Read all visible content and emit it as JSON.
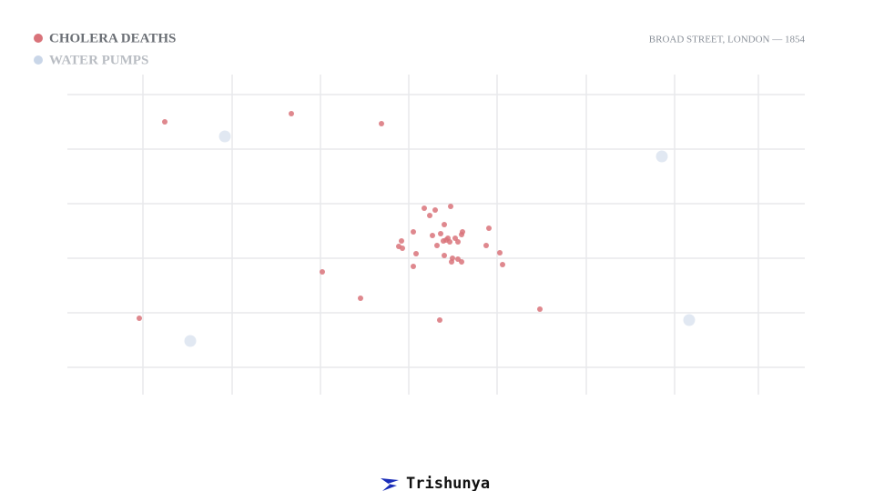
{
  "chart_data": {
    "type": "scatter",
    "subtitle": "BROAD STREET, LONDON — 1854",
    "xlim": [
      0,
      810
    ],
    "ylim": [
      0,
      352
    ],
    "xticks": [
      83,
      181,
      278,
      375,
      472,
      570,
      667,
      759
    ],
    "yticks": [
      30,
      90,
      150,
      210,
      270,
      330
    ],
    "grid": true,
    "legend": "top-left",
    "series": [
      {
        "name": "CHOLERA DEATHS",
        "color": "#d9737a",
        "x": [
          107,
          246,
          345,
          392,
          404,
          421,
          398,
          414,
          380,
          463,
          401,
          410,
          418,
          426,
          434,
          433,
          367,
          364,
          368,
          406,
          413,
          416,
          420,
          429,
          460,
          383,
          414,
          423,
          429,
          475,
          433,
          422,
          380,
          478,
          280,
          322,
          79,
          409,
          519
        ],
        "values": [
          300,
          309,
          298,
          205,
          203,
          207,
          197,
          187,
          179,
          183,
          175,
          177,
          172,
          172,
          179,
          176,
          169,
          163,
          161,
          164,
          169,
          170,
          168,
          168,
          164,
          155,
          153,
          150,
          149,
          156,
          146,
          146,
          141,
          143,
          135,
          106,
          84,
          82,
          94
        ]
      },
      {
        "name": "WATER PUMPS",
        "color": "#c9d6e8",
        "x": [
          173,
          653,
          683,
          135
        ],
        "values": [
          284,
          262,
          82,
          59
        ]
      }
    ]
  },
  "footer": {
    "logo": "Trishunya"
  }
}
